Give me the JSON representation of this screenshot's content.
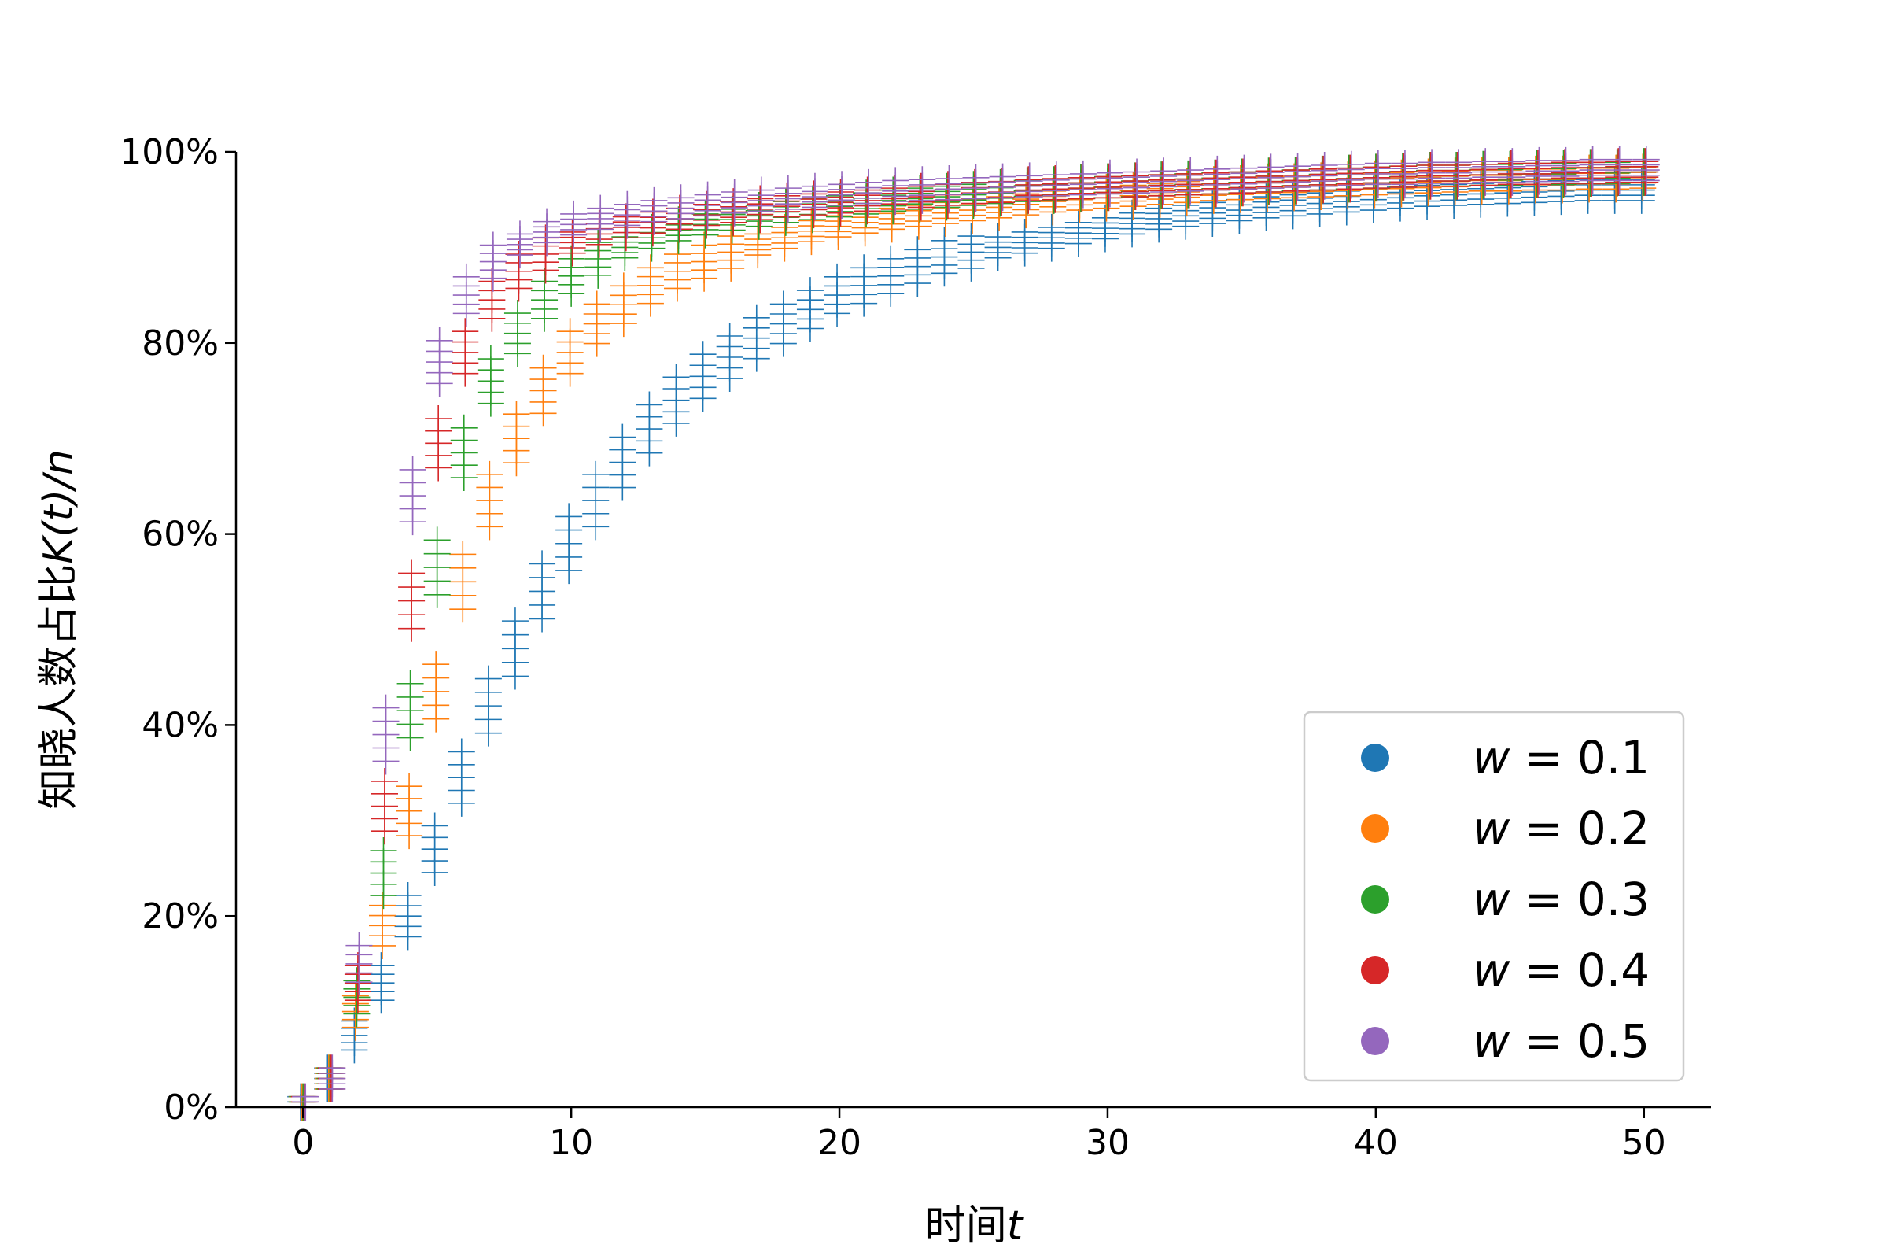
{
  "chart_data": {
    "type": "scatter",
    "title": "",
    "xlabel": "时间",
    "xlabel_var": "t",
    "ylabel": "知晓人数占比",
    "ylabel_var": "K(t)/n",
    "xlim": [
      -2.5,
      52.5
    ],
    "ylim": [
      0,
      100
    ],
    "xticks": [
      0,
      10,
      20,
      30,
      40,
      50
    ],
    "xtick_labels": [
      "0",
      "10",
      "20",
      "30",
      "40",
      "50"
    ],
    "yticks": [
      0,
      20,
      40,
      60,
      80,
      100
    ],
    "ytick_labels": [
      "0%",
      "20%",
      "40%",
      "60%",
      "80%",
      "100%"
    ],
    "grid": false,
    "legend_position": "lower-right",
    "marker": "+",
    "marker_note": "several replicate runs per time step drawn as stacked + markers",
    "series": [
      {
        "name": "w = 0.1",
        "legend_var": "w",
        "legend_value": "0.1",
        "color": "#1f77b4",
        "x": [
          0,
          1,
          2,
          3,
          4,
          5,
          6,
          7,
          8,
          9,
          10,
          11,
          12,
          13,
          14,
          15,
          16,
          17,
          18,
          19,
          20,
          21,
          22,
          23,
          24,
          25,
          26,
          27,
          28,
          29,
          30,
          31,
          32,
          33,
          34,
          35,
          36,
          37,
          38,
          39,
          40,
          41,
          42,
          43,
          44,
          45,
          46,
          47,
          48,
          49,
          50
        ],
        "y": [
          0,
          3,
          7.5,
          13,
          20,
          27,
          34.5,
          42,
          48,
          54,
          59,
          63.5,
          67.5,
          71,
          74,
          76.5,
          78.5,
          80.5,
          82,
          83.5,
          85,
          86,
          87,
          88,
          89,
          89.5,
          90,
          90.5,
          91,
          91.5,
          92,
          92.5,
          93,
          93.3,
          93.6,
          93.9,
          94.2,
          94.4,
          94.6,
          94.8,
          95,
          95.2,
          95.4,
          95.5,
          95.6,
          95.7,
          95.8,
          95.9,
          96,
          96,
          96
        ]
      },
      {
        "name": "w = 0.2",
        "legend_var": "w",
        "legend_value": "0.2",
        "color": "#ff7f0e",
        "x": [
          0,
          1,
          2,
          3,
          4,
          5,
          6,
          7,
          8,
          9,
          10,
          11,
          12,
          13,
          14,
          15,
          16,
          17,
          18,
          19,
          20,
          21,
          22,
          23,
          24,
          25,
          26,
          27,
          28,
          29,
          30,
          31,
          32,
          33,
          34,
          35,
          36,
          37,
          38,
          39,
          40,
          41,
          42,
          43,
          44,
          45,
          46,
          47,
          48,
          49,
          50
        ],
        "y": [
          0,
          3,
          10,
          19,
          31,
          43.5,
          55,
          63.5,
          70,
          75,
          79,
          82,
          84,
          86,
          87.5,
          88.5,
          89.5,
          90.3,
          91,
          91.7,
          92.2,
          92.6,
          93,
          93.3,
          93.6,
          93.9,
          94.2,
          94.5,
          94.8,
          95,
          95.2,
          95.4,
          95.6,
          95.8,
          96,
          96.1,
          96.2,
          96.3,
          96.4,
          96.5,
          96.6,
          96.7,
          96.8,
          96.9,
          97,
          97,
          97.1,
          97.1,
          97.2,
          97.2,
          97.3
        ]
      },
      {
        "name": "w = 0.3",
        "legend_var": "w",
        "legend_value": "0.3",
        "color": "#2ca02c",
        "x": [
          0,
          1,
          2,
          3,
          4,
          5,
          6,
          7,
          8,
          9,
          10,
          11,
          12,
          13,
          14,
          15,
          16,
          17,
          18,
          19,
          20,
          21,
          22,
          23,
          24,
          25,
          26,
          27,
          28,
          29,
          30,
          31,
          32,
          33,
          34,
          35,
          36,
          37,
          38,
          39,
          40,
          41,
          42,
          43,
          44,
          45,
          46,
          47,
          48,
          49,
          50
        ],
        "y": [
          0,
          3,
          11.5,
          24.5,
          41.5,
          56.5,
          68.5,
          76,
          81,
          84.5,
          87,
          88.8,
          90,
          91,
          91.8,
          92.4,
          92.9,
          93.3,
          93.7,
          94,
          94.3,
          94.6,
          94.9,
          95.1,
          95.3,
          95.5,
          95.7,
          95.9,
          96,
          96.2,
          96.3,
          96.4,
          96.5,
          96.6,
          96.7,
          96.8,
          96.9,
          97,
          97.1,
          97.2,
          97.3,
          97.4,
          97.5,
          97.5,
          97.6,
          97.6,
          97.7,
          97.7,
          97.8,
          97.8,
          97.9
        ]
      },
      {
        "name": "w = 0.4",
        "legend_var": "w",
        "legend_value": "0.4",
        "color": "#d62728",
        "x": [
          0,
          1,
          2,
          3,
          4,
          5,
          6,
          7,
          8,
          9,
          10,
          11,
          12,
          13,
          14,
          15,
          16,
          17,
          18,
          19,
          20,
          21,
          22,
          23,
          24,
          25,
          26,
          27,
          28,
          29,
          30,
          31,
          32,
          33,
          34,
          35,
          36,
          37,
          38,
          39,
          40,
          41,
          42,
          43,
          44,
          45,
          46,
          47,
          48,
          49,
          50
        ],
        "y": [
          0,
          3,
          13,
          31.5,
          53,
          69.5,
          79,
          84.5,
          87.5,
          89.3,
          90.5,
          91.4,
          92.1,
          92.6,
          93,
          93.4,
          93.7,
          94,
          94.3,
          94.5,
          94.7,
          94.9,
          95.1,
          95.3,
          95.5,
          95.7,
          95.8,
          96,
          96.1,
          96.2,
          96.3,
          96.4,
          96.5,
          96.6,
          96.7,
          96.8,
          96.9,
          97,
          97.1,
          97.2,
          97.3,
          97.4,
          97.5,
          97.5,
          97.6,
          97.7,
          97.7,
          97.8,
          97.8,
          97.9,
          97.9
        ]
      },
      {
        "name": "w = 0.5",
        "legend_var": "w",
        "legend_value": "0.5",
        "color": "#9467bd",
        "x": [
          0,
          1,
          2,
          3,
          4,
          5,
          6,
          7,
          8,
          9,
          10,
          11,
          12,
          13,
          14,
          15,
          16,
          17,
          18,
          19,
          20,
          21,
          22,
          23,
          24,
          25,
          26,
          27,
          28,
          29,
          30,
          31,
          32,
          33,
          34,
          35,
          36,
          37,
          38,
          39,
          40,
          41,
          42,
          43,
          44,
          45,
          46,
          47,
          48,
          49,
          50
        ],
        "y": [
          0,
          3,
          15,
          39,
          64,
          78,
          85,
          88.5,
          90.3,
          91.6,
          92.4,
          93,
          93.4,
          93.8,
          94.1,
          94.4,
          94.7,
          94.9,
          95.1,
          95.3,
          95.5,
          95.7,
          95.9,
          96,
          96.1,
          96.2,
          96.3,
          96.4,
          96.5,
          96.6,
          96.7,
          96.8,
          96.9,
          97,
          97.1,
          97.2,
          97.3,
          97.4,
          97.5,
          97.6,
          97.7,
          97.7,
          97.8,
          97.8,
          97.9,
          97.9,
          98,
          98,
          98.1,
          98.1,
          98.1
        ]
      }
    ]
  }
}
